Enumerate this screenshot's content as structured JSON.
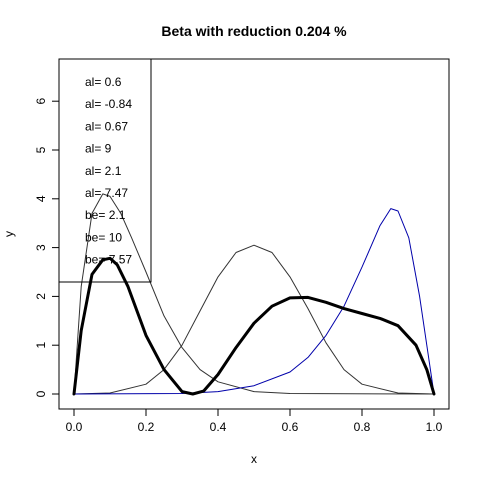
{
  "chart_data": {
    "type": "line",
    "title": "Beta with reduction 0.204 %",
    "xlabel": "x",
    "ylabel": "y",
    "xlim": [
      0,
      1
    ],
    "ylim": [
      0,
      6.8
    ],
    "x_ticks": [
      "0.0",
      "0.2",
      "0.4",
      "0.6",
      "0.8",
      "1.0"
    ],
    "y_ticks": [
      "0",
      "1",
      "2",
      "3",
      "4",
      "5",
      "6"
    ],
    "grid": false,
    "legend_position": "top-left",
    "legend_entries": [
      "al= 0.6",
      "al= -0.84",
      "al= 0.67",
      "al= 9",
      "al= 2.1",
      "al= 7.47",
      "be= 2.1",
      "be= 10",
      "be= 7.57"
    ],
    "series": [
      {
        "x": [
          0,
          0.02,
          0.05,
          0.08,
          0.1,
          0.13,
          0.16,
          0.2,
          0.25,
          0.3,
          0.35,
          0.4,
          0.5,
          0.6,
          1.0
        ],
        "y": [
          0,
          2.2,
          3.7,
          4.1,
          4.05,
          3.7,
          3.2,
          2.5,
          1.6,
          0.95,
          0.5,
          0.25,
          0.05,
          0.01,
          0
        ],
        "color": "#333333",
        "width": 1
      },
      {
        "x": [
          0,
          0.1,
          0.2,
          0.25,
          0.3,
          0.35,
          0.4,
          0.45,
          0.5,
          0.55,
          0.6,
          0.65,
          0.7,
          0.75,
          0.8,
          0.9,
          1.0
        ],
        "y": [
          0,
          0.02,
          0.2,
          0.5,
          1.0,
          1.7,
          2.4,
          2.9,
          3.05,
          2.9,
          2.4,
          1.75,
          1.05,
          0.5,
          0.2,
          0.02,
          0
        ],
        "color": "#333333",
        "width": 1
      },
      {
        "x": [
          0,
          0.3,
          0.4,
          0.5,
          0.6,
          0.65,
          0.7,
          0.75,
          0.8,
          0.85,
          0.88,
          0.9,
          0.93,
          0.96,
          0.98,
          1.0
        ],
        "y": [
          0,
          0.01,
          0.05,
          0.17,
          0.45,
          0.75,
          1.2,
          1.8,
          2.6,
          3.45,
          3.8,
          3.75,
          3.2,
          2.0,
          1.0,
          0
        ],
        "color": "#0000aa",
        "width": 1
      },
      {
        "x": [
          0,
          0.02,
          0.05,
          0.08,
          0.1,
          0.12,
          0.15,
          0.18,
          0.2,
          0.25,
          0.3,
          0.33,
          0.36,
          0.4,
          0.45,
          0.5,
          0.55,
          0.6,
          0.65,
          0.7,
          0.75,
          0.8,
          0.85,
          0.9,
          0.95,
          0.98,
          1.0
        ],
        "y": [
          0,
          1.3,
          2.45,
          2.75,
          2.78,
          2.65,
          2.2,
          1.6,
          1.2,
          0.5,
          0.05,
          0,
          0.06,
          0.4,
          0.95,
          1.45,
          1.8,
          1.97,
          1.98,
          1.88,
          1.75,
          1.65,
          1.55,
          1.4,
          1.0,
          0.5,
          0
        ],
        "color": "#000000",
        "width": 3
      }
    ]
  }
}
